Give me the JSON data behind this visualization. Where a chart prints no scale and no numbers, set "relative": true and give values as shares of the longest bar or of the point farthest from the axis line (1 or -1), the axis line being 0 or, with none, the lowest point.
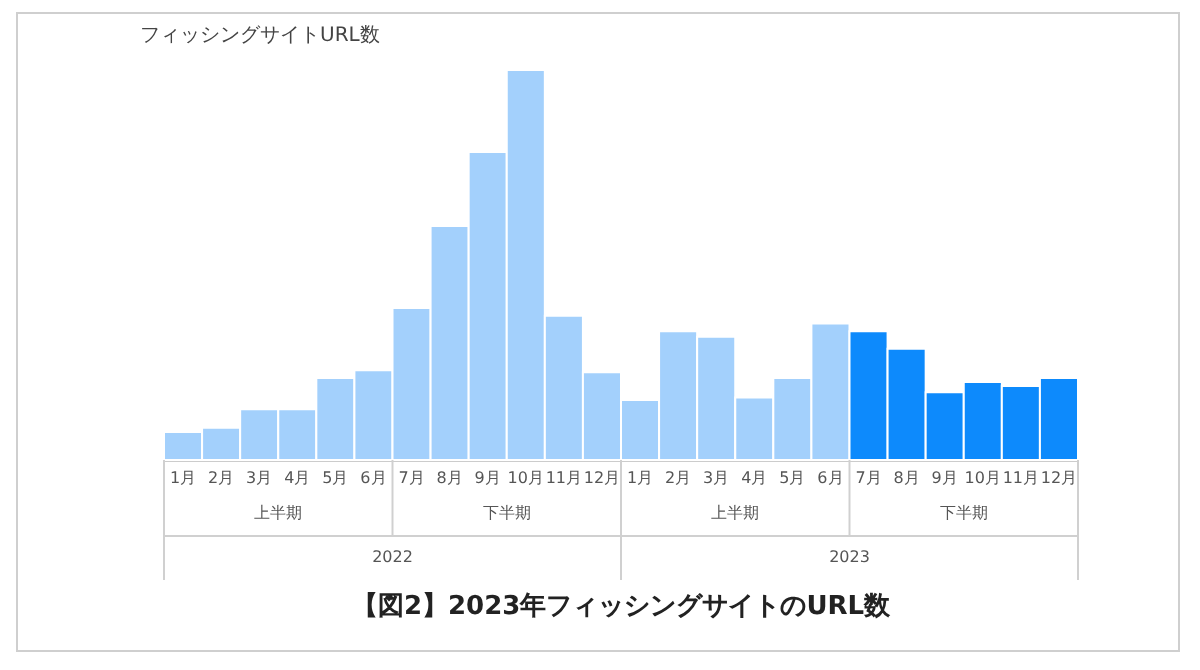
{
  "chart_data": {
    "type": "bar",
    "title": "フィッシングサイトURL数",
    "relative": true,
    "categories": [
      "1月",
      "2月",
      "3月",
      "4月",
      "5月",
      "6月",
      "7月",
      "8月",
      "9月",
      "10月",
      "11月",
      "12月",
      "1月",
      "2月",
      "3月",
      "4月",
      "5月",
      "6月",
      "7月",
      "8月",
      "9月",
      "10月",
      "11月",
      "12月"
    ],
    "values": [
      0.072,
      0.083,
      0.13,
      0.13,
      0.21,
      0.23,
      0.39,
      0.6,
      0.79,
      1,
      0.37,
      0.225,
      0.154,
      0.33,
      0.316,
      0.16,
      0.21,
      0.35,
      0.33,
      0.285,
      0.174,
      0.2,
      0.19,
      0.21
    ],
    "colors": [
      "#a3d0fc",
      "#a3d0fc",
      "#a3d0fc",
      "#a3d0fc",
      "#a3d0fc",
      "#a3d0fc",
      "#a3d0fc",
      "#a3d0fc",
      "#a3d0fc",
      "#a3d0fc",
      "#a3d0fc",
      "#a3d0fc",
      "#a3d0fc",
      "#a3d0fc",
      "#a3d0fc",
      "#a3d0fc",
      "#a3d0fc",
      "#a3d0fc",
      "#0d8afc",
      "#0d8afc",
      "#0d8afc",
      "#0d8afc",
      "#0d8afc",
      "#0d8afc"
    ],
    "annotations": [
      "上半期",
      "下半期",
      "上半期",
      "下半期",
      "2022",
      "2023",
      "【図2】2023年フィッシングサイトのURL数"
    ]
  }
}
